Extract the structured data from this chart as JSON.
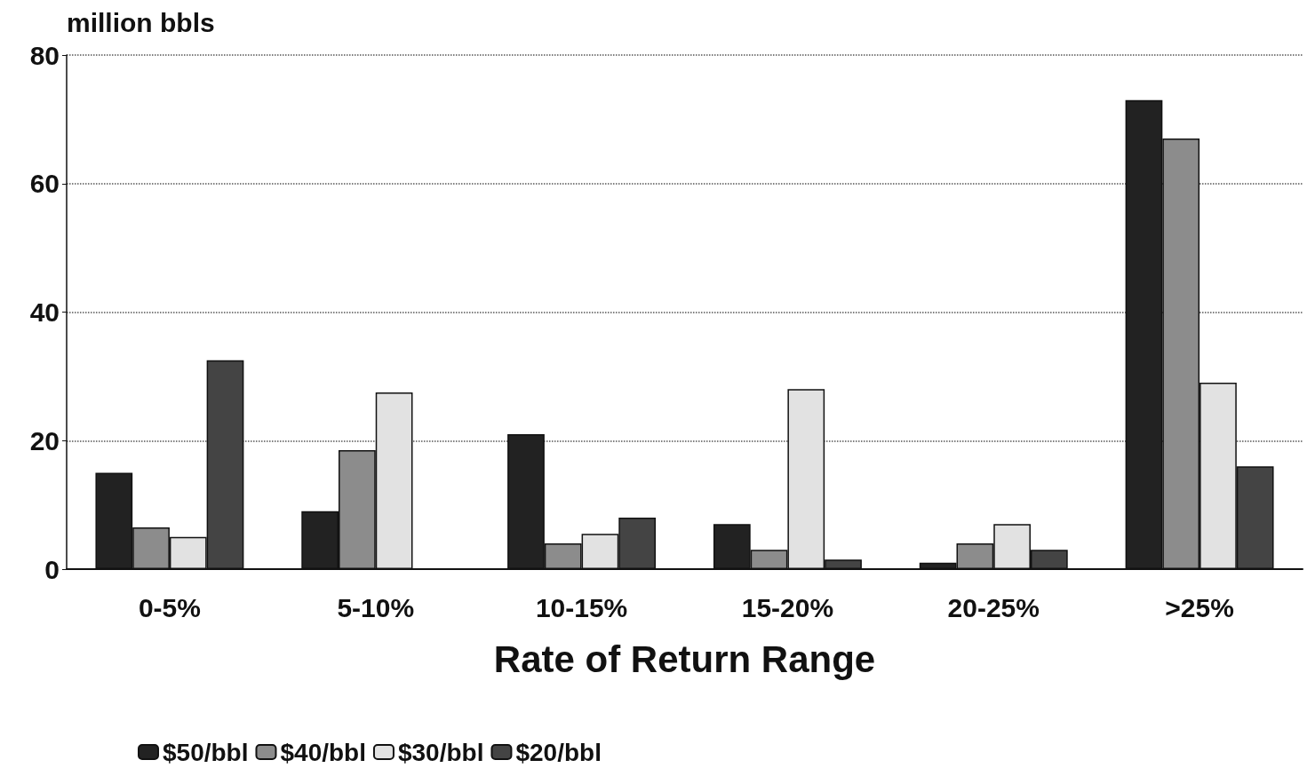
{
  "chart_data": {
    "type": "bar",
    "ylabel": "million bbls",
    "xlabel": "Rate of Return Range",
    "categories": [
      "0-5%",
      "5-10%",
      "10-15%",
      "15-20%",
      "20-25%",
      ">25%"
    ],
    "series": [
      {
        "name": "$50/bbl",
        "color": "#222222",
        "values": [
          15,
          9,
          21,
          7,
          1,
          73
        ]
      },
      {
        "name": "$40/bbl",
        "color": "#8c8c8c",
        "values": [
          6.5,
          18.5,
          4,
          3,
          4,
          67
        ]
      },
      {
        "name": "$30/bbl",
        "color": "#e2e2e2",
        "values": [
          5,
          27.5,
          5.5,
          28,
          7,
          29
        ]
      },
      {
        "name": "$20/bbl",
        "color": "#444444",
        "values": [
          32.5,
          null,
          8,
          1.5,
          3,
          16
        ]
      }
    ],
    "ylim": [
      0,
      80
    ],
    "yticks": [
      0,
      20,
      40,
      60,
      80
    ],
    "grid": "y",
    "legend": "bottom left"
  }
}
